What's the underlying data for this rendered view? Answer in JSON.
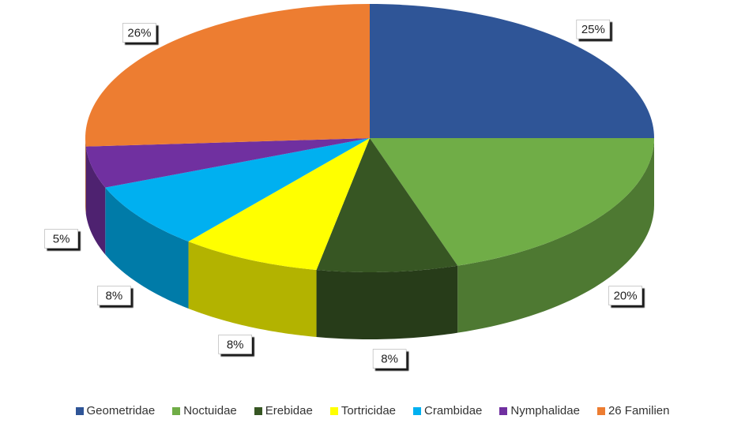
{
  "chart_data": {
    "type": "pie",
    "categories": [
      "Geometridae",
      "Noctuidae",
      "Erebidae",
      "Tortricidae",
      "Crambidae",
      "Nymphalidae",
      "26 Familien"
    ],
    "values": [
      25,
      20,
      8,
      8,
      8,
      5,
      26
    ],
    "value_labels": [
      "25%",
      "20%",
      "8%",
      "8%",
      "8%",
      "5%",
      "26%"
    ],
    "colors": [
      "#2f5597",
      "#70ad47",
      "#375623",
      "#ffff00",
      "#00b0f0",
      "#7030a0",
      "#ed7d31"
    ],
    "legend": "bottom"
  }
}
